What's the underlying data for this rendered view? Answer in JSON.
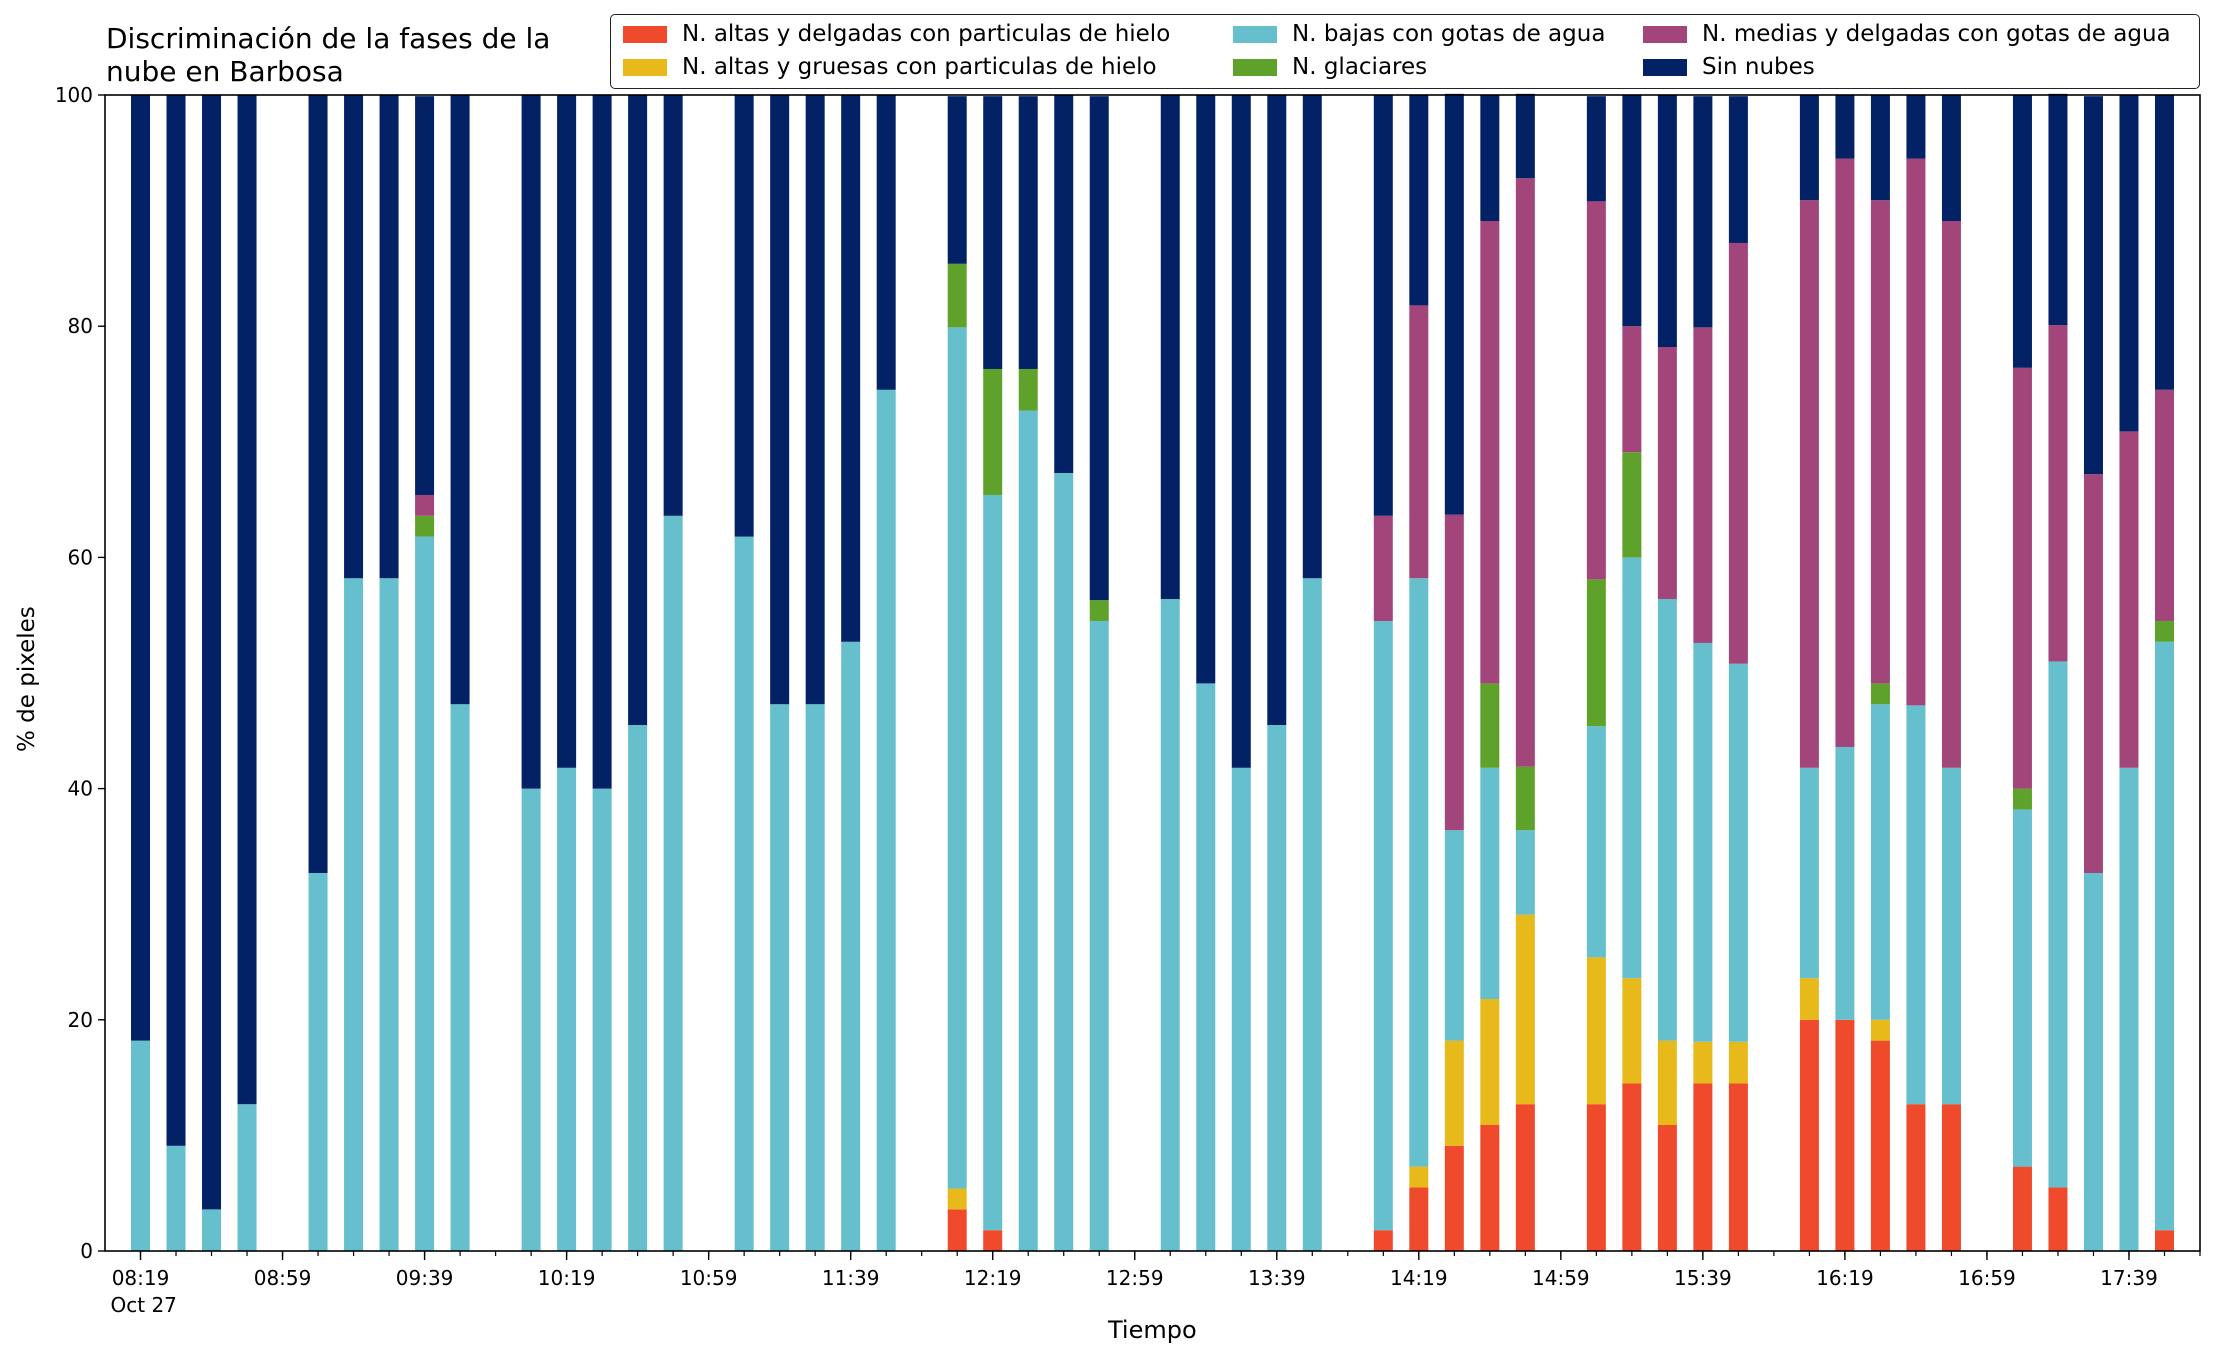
{
  "chart_data": {
    "type": "bar",
    "stacked": true,
    "title": "Discriminación de la fases de la\nnube en Barbosa",
    "xlabel": "Tiempo",
    "ylabel": "% de pixeles",
    "ylim": [
      0,
      100
    ],
    "yticks": [
      0,
      20,
      40,
      60,
      80,
      100
    ],
    "grid": false,
    "legend_position": "top",
    "xticklabels": [
      "08:19\nOct 27",
      "08:59",
      "09:39",
      "10:19",
      "10:59",
      "11:39",
      "12:19",
      "12:59",
      "13:39",
      "14:19",
      "14:59",
      "15:39",
      "16:19",
      "16:59",
      "17:39"
    ],
    "x": [
      "08:19",
      "08:29",
      "08:39",
      "08:49",
      "08:59",
      "09:09",
      "09:19",
      "09:29",
      "09:39",
      "09:49",
      "09:59",
      "10:09",
      "10:19",
      "10:29",
      "10:39",
      "10:49",
      "10:59",
      "11:09",
      "11:19",
      "11:29",
      "11:39",
      "11:49",
      "11:59",
      "12:09",
      "12:19",
      "12:29",
      "12:39",
      "12:49",
      "12:59",
      "13:09",
      "13:19",
      "13:29",
      "13:39",
      "13:49",
      "13:59",
      "14:09",
      "14:19",
      "14:29",
      "14:39",
      "14:49",
      "14:59",
      "15:09",
      "15:19",
      "15:29",
      "15:39",
      "15:49",
      "15:59",
      "16:09",
      "16:19",
      "16:29",
      "16:39",
      "16:49",
      "16:59",
      "17:09",
      "17:19",
      "17:29",
      "17:39",
      "17:49"
    ],
    "series": [
      {
        "name": "N. altas y delgadas con particulas de hielo",
        "color": "#ee4a2b",
        "values": [
          0,
          0,
          0,
          0,
          null,
          0,
          0,
          0,
          0,
          0,
          null,
          0,
          0,
          0,
          0,
          0,
          null,
          0,
          0,
          0,
          0,
          0,
          null,
          3.6,
          1.8,
          0,
          0,
          0,
          null,
          0,
          0,
          0,
          0,
          0,
          null,
          1.8,
          5.5,
          9.1,
          10.9,
          12.7,
          null,
          12.7,
          14.5,
          10.9,
          14.5,
          14.5,
          null,
          20,
          20,
          18.2,
          12.7,
          12.7,
          null,
          7.3,
          5.5,
          0,
          0,
          1.8
        ]
      },
      {
        "name": "N. altas y gruesas con particulas de hielo",
        "color": "#e7b91a",
        "values": [
          0,
          0,
          0,
          0,
          null,
          0,
          0,
          0,
          0,
          0,
          null,
          0,
          0,
          0,
          0,
          0,
          null,
          0,
          0,
          0,
          0,
          0,
          null,
          1.8,
          0,
          0,
          0,
          0,
          null,
          0,
          0,
          0,
          0,
          0,
          null,
          0,
          1.8,
          9.1,
          10.9,
          16.4,
          null,
          12.7,
          9.1,
          7.3,
          3.6,
          3.6,
          null,
          3.6,
          0,
          1.8,
          0,
          0,
          null,
          0,
          0,
          0,
          0,
          0
        ]
      },
      {
        "name": "N. bajas con gotas de agua",
        "color": "#65bfcc",
        "values": [
          18.2,
          9.1,
          3.6,
          12.7,
          null,
          32.7,
          58.2,
          58.2,
          61.8,
          47.3,
          null,
          40,
          41.8,
          40,
          45.5,
          63.6,
          null,
          61.8,
          47.3,
          47.3,
          52.7,
          74.5,
          null,
          74.5,
          63.6,
          72.7,
          67.3,
          54.5,
          null,
          56.4,
          49.1,
          41.8,
          45.5,
          58.2,
          null,
          52.7,
          50.9,
          18.2,
          20,
          7.3,
          null,
          20,
          36.4,
          38.2,
          34.5,
          32.7,
          null,
          18.2,
          23.6,
          27.3,
          34.5,
          29.1,
          null,
          30.9,
          45.5,
          32.7,
          41.8,
          50.9
        ]
      },
      {
        "name": "N. glaciares",
        "color": "#5ea22c",
        "values": [
          0,
          0,
          0,
          0,
          null,
          0,
          0,
          0,
          1.8,
          0,
          null,
          0,
          0,
          0,
          0,
          0,
          null,
          0,
          0,
          0,
          0,
          0,
          null,
          5.5,
          10.9,
          3.6,
          0,
          1.8,
          null,
          0,
          0,
          0,
          0,
          0,
          null,
          0,
          0,
          0,
          7.3,
          5.5,
          null,
          12.7,
          9.1,
          0,
          0,
          0,
          null,
          0,
          0,
          1.8,
          0,
          0,
          null,
          1.8,
          0,
          0,
          0,
          1.8
        ]
      },
      {
        "name": "N. medias y delgadas con gotas de agua",
        "color": "#a2457b",
        "values": [
          0,
          0,
          0,
          0,
          null,
          0,
          0,
          0,
          1.8,
          0,
          null,
          0,
          0,
          0,
          0,
          0,
          null,
          0,
          0,
          0,
          0,
          0,
          null,
          0,
          0,
          0,
          0,
          0,
          null,
          0,
          0,
          0,
          0,
          0,
          null,
          9.1,
          23.6,
          27.3,
          40,
          50.9,
          null,
          32.7,
          10.9,
          21.8,
          27.3,
          36.4,
          null,
          49.1,
          50.9,
          41.8,
          47.3,
          47.3,
          null,
          36.4,
          29.1,
          34.5,
          29.1,
          20
        ]
      },
      {
        "name": "Sin nubes",
        "color": "#032165",
        "values": [
          81.8,
          90.9,
          96.4,
          87.3,
          null,
          67.3,
          41.8,
          41.8,
          34.5,
          52.7,
          null,
          60,
          58.2,
          60,
          54.5,
          36.4,
          null,
          38.2,
          52.7,
          52.7,
          47.3,
          25.5,
          null,
          14.5,
          23.6,
          23.6,
          32.7,
          43.6,
          null,
          43.6,
          50.9,
          58.2,
          54.5,
          41.8,
          null,
          36.4,
          18.2,
          36.4,
          10.9,
          7.3,
          null,
          9.1,
          20,
          21.8,
          20,
          12.7,
          null,
          9.1,
          5.5,
          9.1,
          5.5,
          10.9,
          null,
          23.6,
          20,
          32.7,
          29.1,
          25.5
        ]
      }
    ]
  }
}
